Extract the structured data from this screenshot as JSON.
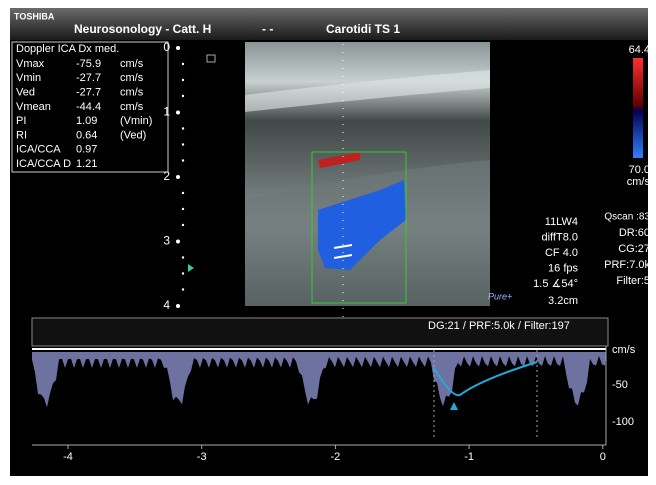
{
  "header": {
    "brand": "TOSHIBA",
    "study": "Neurosonology - Catt. H",
    "separator": "- -",
    "preset": "Carotidi TS 1"
  },
  "measurements": {
    "title": "Doppler ICA Dx med.",
    "rows": [
      [
        "Vmax",
        "-75.9",
        "cm/s"
      ],
      [
        "Vmin",
        "-27.7",
        "cm/s"
      ],
      [
        "Ved",
        "-27.7",
        "cm/s"
      ],
      [
        "Vmean",
        "-44.4",
        "cm/s"
      ],
      [
        "PI",
        "1.09",
        "(Vmin)"
      ],
      [
        "RI",
        "0.64",
        "(Ved)"
      ],
      [
        "ICA/CCA",
        "0.97"
      ],
      [
        "ICA/CCA D",
        "1.21"
      ]
    ]
  },
  "depth_scale": [
    "0",
    "1",
    "2",
    "3",
    "4"
  ],
  "color_bar": {
    "top": "64.4",
    "bottom": "70.0",
    "unit": "cm/s"
  },
  "probe_params": [
    "11LW4",
    "diffT8.0",
    "CF 4.0",
    "16 fps",
    "1.5 ∡54°",
    "3.2cm"
  ],
  "logo": "Pure+",
  "image_params": [
    "Qscan :83",
    "DR:60",
    "CG:27",
    "PRF:7.0k",
    "Filter:5"
  ],
  "spectral": {
    "settings": "DG:21 /  PRF:5.0k  / Filter:197",
    "velocity_unit": "cm/s",
    "velocity_labels": [
      "-50",
      "-100"
    ],
    "time_labels": [
      "-4",
      "-3",
      "-2",
      "-1",
      "0"
    ]
  }
}
